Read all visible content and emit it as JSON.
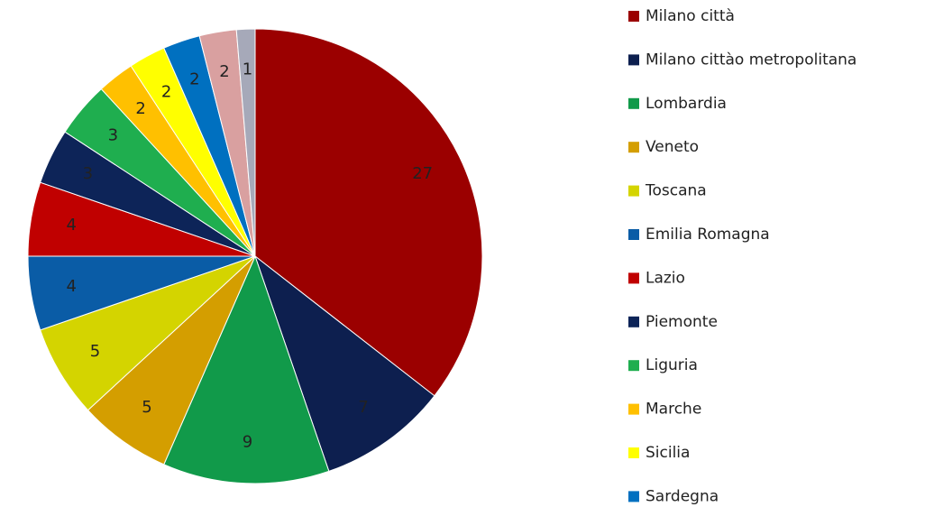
{
  "chart_data": {
    "type": "pie",
    "categories": [
      "Milano città",
      "Milano cittào metropolitana",
      "Lombardia",
      "Veneto",
      "Toscana",
      "Emilia Romagna",
      "Lazio",
      "Piemonte",
      "Liguria",
      "Marche",
      "Sicilia",
      "Sardegna",
      null,
      null
    ],
    "values": [
      27,
      7,
      9,
      5,
      5,
      4,
      4,
      3,
      3,
      2,
      2,
      2,
      2,
      1
    ],
    "colors": [
      "#9b0000",
      "#0d1f4f",
      "#119a4a",
      "#d49e00",
      "#d4d400",
      "#0a5ca6",
      "#c00000",
      "#0d2458",
      "#1fae4f",
      "#ffc000",
      "#ffff00",
      "#0070c0",
      "#d9a0a0",
      "#a6a9b9"
    ],
    "legend": "right"
  }
}
